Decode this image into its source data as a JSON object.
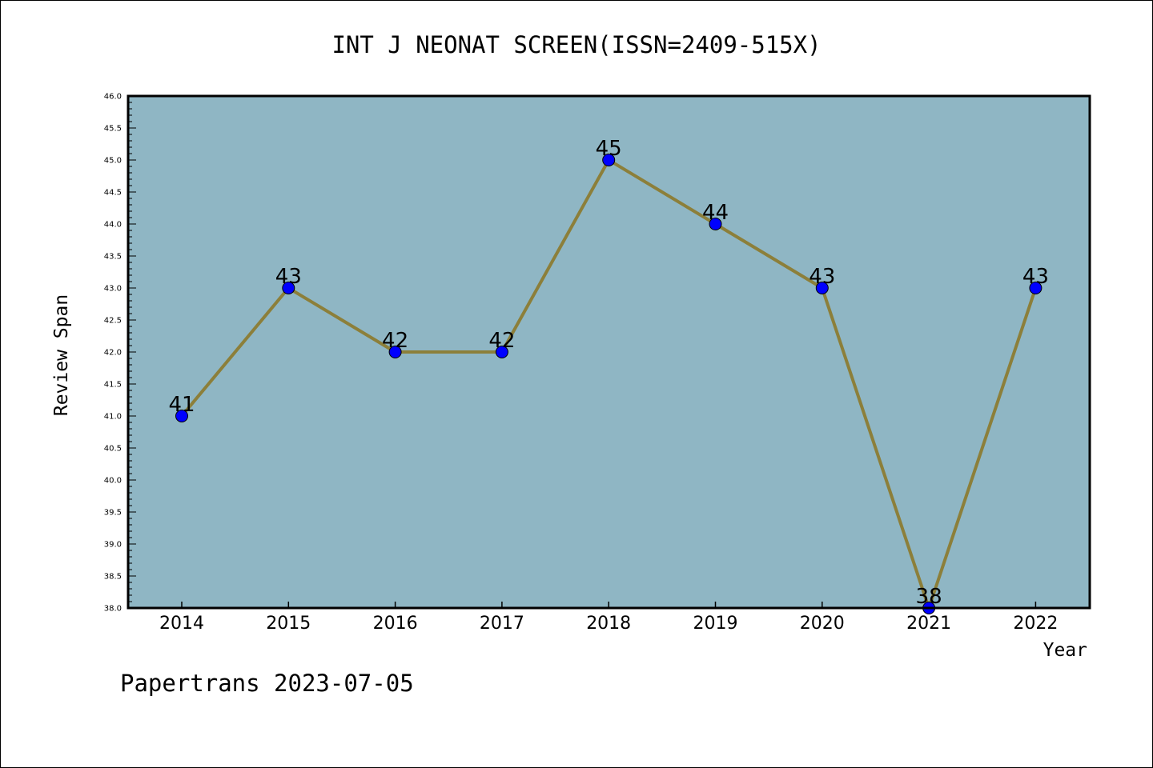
{
  "chart_data": {
    "type": "line",
    "title": "INT J NEONAT SCREEN(ISSN=2409-515X)",
    "xlabel": "Year",
    "ylabel": "Review Span",
    "ylim": [
      38.0,
      46.0
    ],
    "y_ticks": [
      "38.0",
      "38.5",
      "39.0",
      "39.5",
      "40.0",
      "40.5",
      "41.0",
      "41.5",
      "42.0",
      "42.5",
      "43.0",
      "43.5",
      "44.0",
      "44.5",
      "45.0",
      "45.5",
      "46.0"
    ],
    "categories": [
      "2014",
      "2015",
      "2016",
      "2017",
      "2018",
      "2019",
      "2020",
      "2021",
      "2022"
    ],
    "values": [
      41,
      43,
      42,
      42,
      45,
      44,
      43,
      38,
      43
    ],
    "data_labels": [
      "41",
      "43",
      "42",
      "42",
      "45",
      "44",
      "43",
      "38",
      "43"
    ],
    "grid": false,
    "footer": "Papertrans 2023-07-05",
    "colors": {
      "plot_background": "#8FB6C4",
      "line": "#8C7F3A",
      "marker": "#0000FF",
      "axis": "#000000"
    }
  }
}
